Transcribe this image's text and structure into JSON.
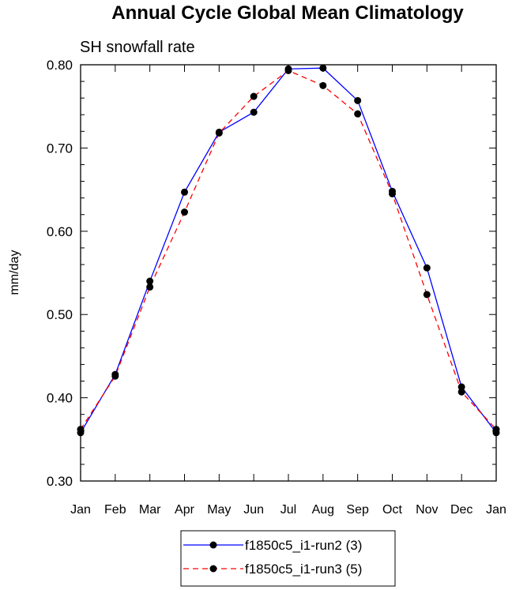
{
  "chart_data": {
    "type": "line",
    "title": "Annual Cycle Global Mean Climatology",
    "subtitle": "SH snowfall rate",
    "xlabel": "",
    "ylabel": "mm/day",
    "categories": [
      "Jan",
      "Feb",
      "Mar",
      "Apr",
      "May",
      "Jun",
      "Jul",
      "Aug",
      "Sep",
      "Oct",
      "Nov",
      "Dec",
      "Jan"
    ],
    "y_ticks": [
      "0.30",
      "0.40",
      "0.50",
      "0.60",
      "0.70",
      "0.80"
    ],
    "ylim": [
      0.3,
      0.8
    ],
    "grid": false,
    "legend_position": "bottom-center",
    "series": [
      {
        "name": "f1850c5_i1-run2 (3)",
        "color": "#0000ff",
        "line_style": "solid",
        "marker": "filled-circle",
        "values": [
          0.358,
          0.428,
          0.54,
          0.647,
          0.719,
          0.743,
          0.795,
          0.796,
          0.757,
          0.648,
          0.556,
          0.413,
          0.358
        ]
      },
      {
        "name": "f1850c5_i1-run3 (5)",
        "color": "#ff0000",
        "line_style": "dashed",
        "marker": "filled-circle",
        "values": [
          0.362,
          0.426,
          0.533,
          0.623,
          0.718,
          0.762,
          0.793,
          0.775,
          0.741,
          0.645,
          0.524,
          0.407,
          0.362
        ]
      }
    ]
  }
}
